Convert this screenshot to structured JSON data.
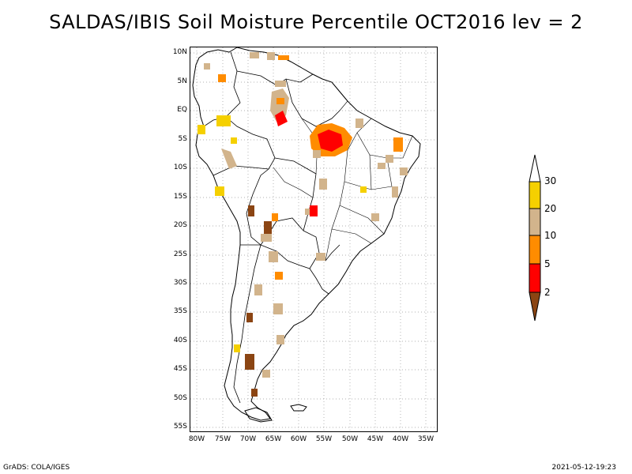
{
  "title": "SALDAS/IBIS Soil Moisture Percentile OCT2016 lev = 2",
  "axes": {
    "lat_labels": [
      "10N",
      "5N",
      "EQ",
      "5S",
      "10S",
      "15S",
      "20S",
      "25S",
      "30S",
      "35S",
      "40S",
      "45S",
      "50S",
      "55S"
    ],
    "lon_labels": [
      "80W",
      "75W",
      "70W",
      "65W",
      "60W",
      "55W",
      "50W",
      "45W",
      "40W",
      "35W"
    ]
  },
  "legend": {
    "labels": [
      "30",
      "20",
      "10",
      "5",
      "2"
    ],
    "colors": [
      "#ffffff",
      "#f5d000",
      "#d2b48c",
      "#ff8c00",
      "#ff0000",
      "#8b4513"
    ]
  },
  "footer": {
    "left": "GrADS: COLA/IGES",
    "right": "2021-05-12-19:23"
  }
}
